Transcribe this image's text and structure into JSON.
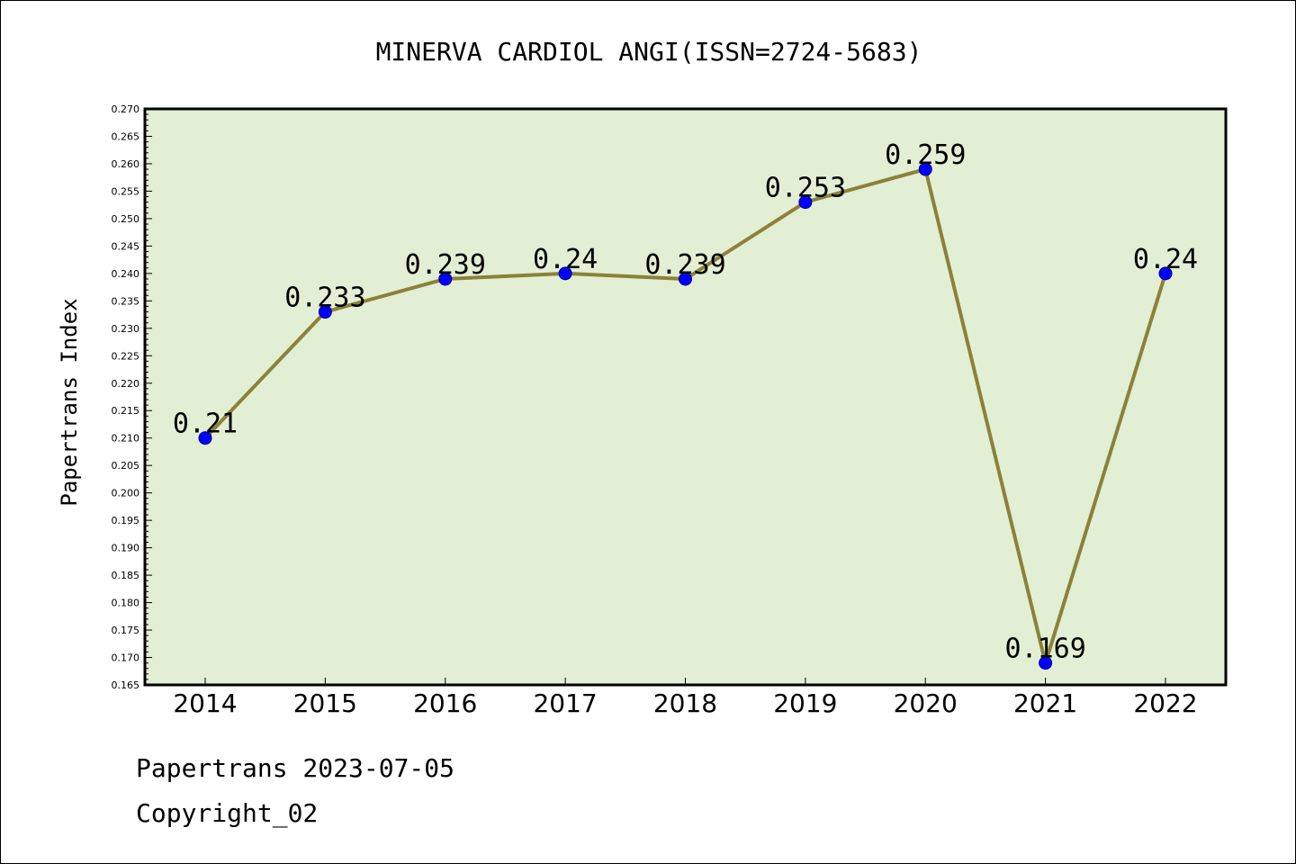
{
  "chart_data": {
    "type": "line",
    "title": "MINERVA CARDIOL ANGI(ISSN=2724-5683)",
    "xlabel": "",
    "ylabel": "Papertrans Index",
    "categories": [
      "2014",
      "2015",
      "2016",
      "2017",
      "2018",
      "2019",
      "2020",
      "2021",
      "2022"
    ],
    "series": [
      {
        "values": [
          0.21,
          0.233,
          0.239,
          0.24,
          0.239,
          0.253,
          0.259,
          0.169,
          0.24
        ],
        "data_labels": [
          "0.21",
          "0.233",
          "0.239",
          "0.24",
          "0.239",
          "0.253",
          "0.259",
          "0.169",
          "0.24"
        ],
        "line_color": "#8b8238",
        "marker_color": "#0000ff"
      }
    ],
    "ylim": [
      0.165,
      0.27
    ],
    "yticks": [
      "0.165",
      "0.170",
      "0.175",
      "0.180",
      "0.185",
      "0.190",
      "0.195",
      "0.200",
      "0.205",
      "0.210",
      "0.215",
      "0.220",
      "0.225",
      "0.230",
      "0.235",
      "0.240",
      "0.245",
      "0.250",
      "0.255",
      "0.260",
      "0.265",
      "0.270"
    ],
    "grid": false,
    "plot_background": "#e2efd5"
  },
  "footer": {
    "line1": "Papertrans 2023-07-05",
    "line2": "Copyright_02"
  }
}
